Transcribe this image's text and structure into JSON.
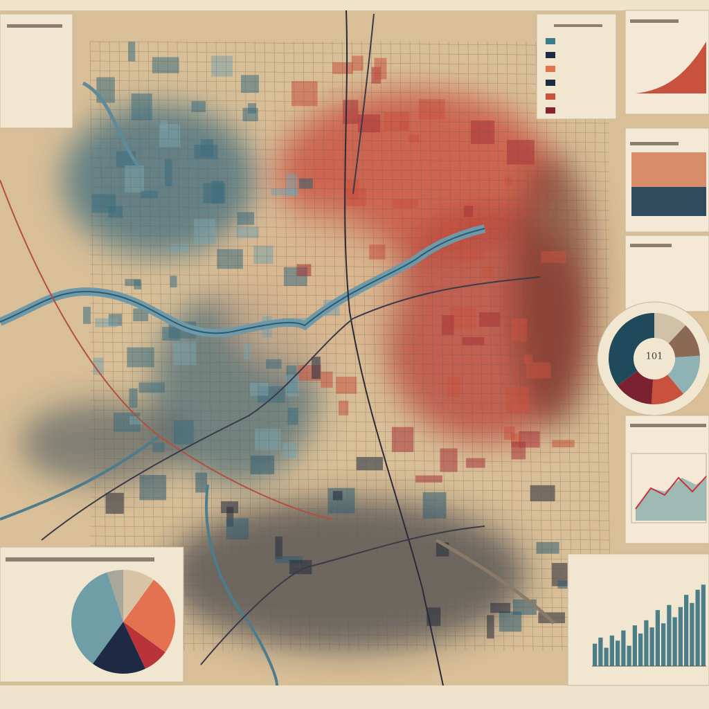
{
  "donut": {
    "label": "101",
    "slices": [
      {
        "value": 12,
        "color": "#cfc0a6"
      },
      {
        "value": 12,
        "color": "#8a6a55"
      },
      {
        "value": 15,
        "color": "#8fb3b5"
      },
      {
        "value": 12,
        "color": "#c9523f"
      },
      {
        "value": 14,
        "color": "#7a2230"
      },
      {
        "value": 35,
        "color": "#1f4a5c"
      }
    ]
  },
  "pie": {
    "slices": [
      {
        "value": 10,
        "color": "#d8c4a4"
      },
      {
        "value": 25,
        "color": "#e4714f"
      },
      {
        "value": 8,
        "color": "#b8343a"
      },
      {
        "value": 17,
        "color": "#1e2a44"
      },
      {
        "value": 35,
        "color": "#6f9ea6"
      },
      {
        "value": 5,
        "color": "#a9a69c"
      }
    ]
  },
  "bars": {
    "ylim": [
      0,
      100
    ],
    "color": "#2f6b7c",
    "values": [
      22,
      28,
      18,
      30,
      25,
      35,
      20,
      40,
      32,
      45,
      38,
      55,
      42,
      60,
      48,
      58,
      70,
      62,
      75,
      80
    ]
  }
}
